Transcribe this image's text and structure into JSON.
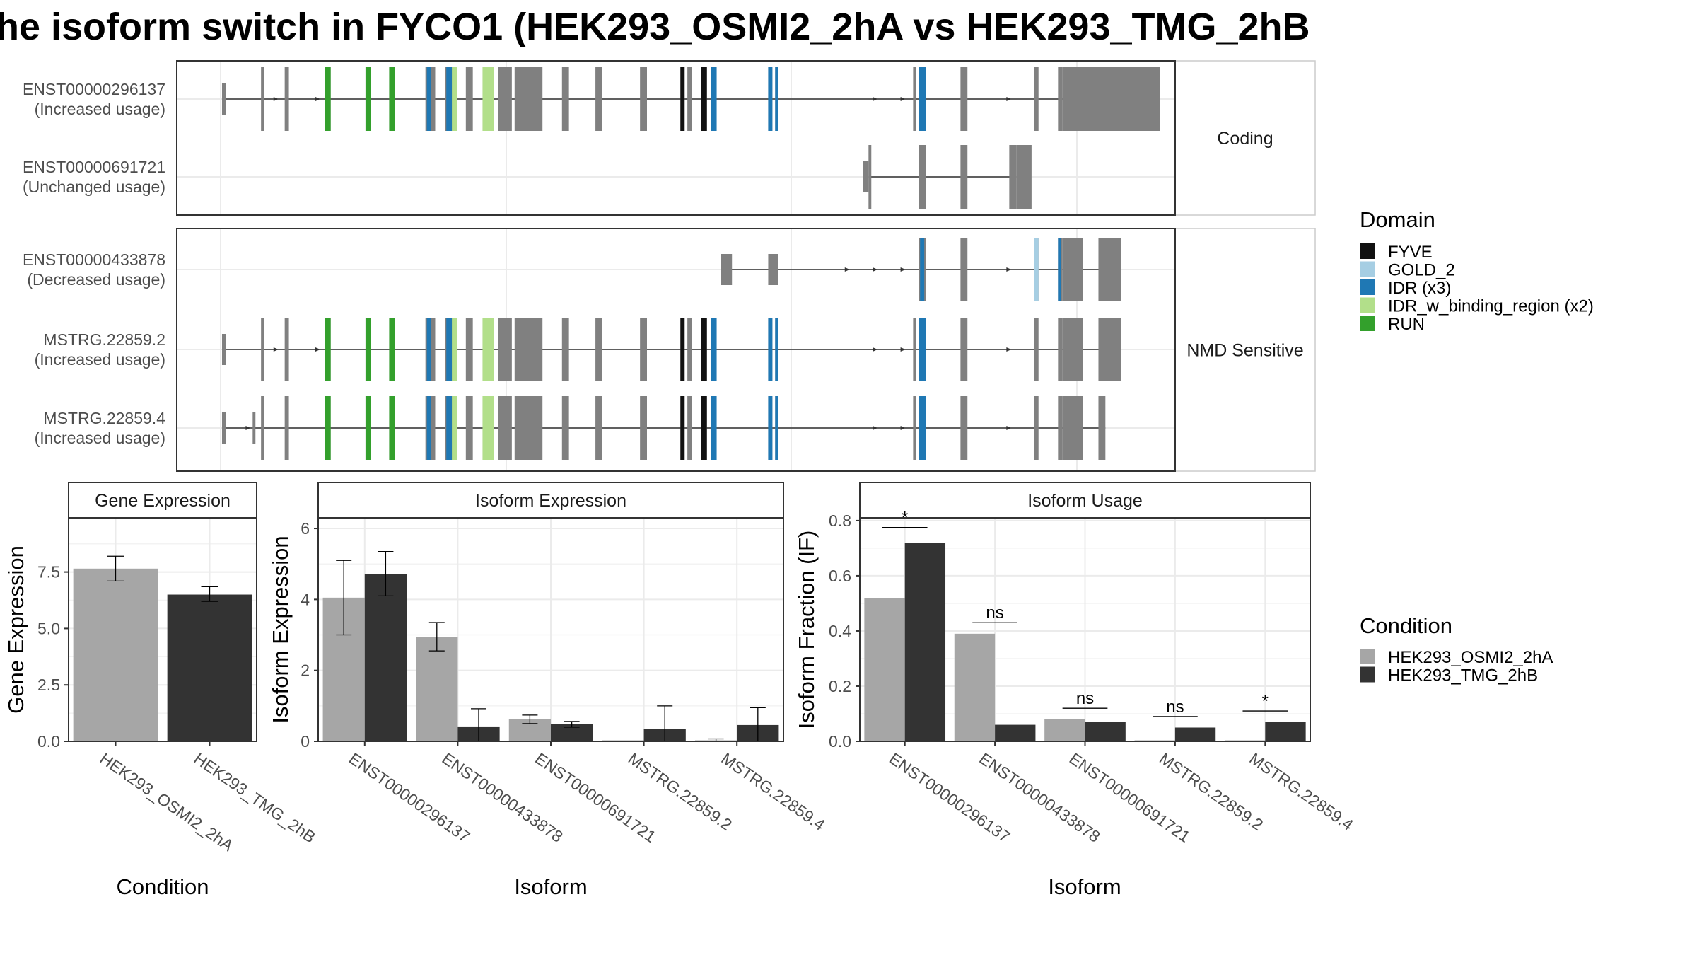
{
  "title": "he isoform switch in FYCO1 (HEK293_OSMI2_2hA vs HEK293_TMG_2hB",
  "colors": {
    "FYVE": "#111111",
    "GOLD_2": "#a6cee3",
    "IDR": "#1f78b4",
    "IDR_w_binding_region": "#b2df8a",
    "RUN": "#33a02c",
    "exon": "#808080",
    "cond_a": "#a6a6a6",
    "cond_b": "#333333"
  },
  "structure": {
    "facets": [
      "Coding",
      "NMD Sensitive"
    ],
    "transcripts": [
      {
        "id": "ENST00000296137",
        "usage": "(Increased usage)",
        "facet": "Coding",
        "utr": [
          [
            1,
            4
          ]
        ],
        "coding": [
          [
            29,
            31
          ],
          [
            46,
            49
          ],
          [
            75,
            79
          ],
          [
            104,
            108
          ],
          [
            121,
            125
          ],
          [
            147,
            154
          ],
          [
            161,
            170
          ],
          [
            176,
            181
          ],
          [
            188,
            196
          ],
          [
            199,
            209
          ],
          [
            211,
            231
          ],
          [
            245,
            250
          ],
          [
            269,
            274
          ],
          [
            301,
            306
          ],
          [
            330,
            333
          ],
          [
            335,
            338
          ],
          [
            345,
            349
          ],
          [
            352,
            356
          ],
          [
            393,
            396
          ],
          [
            398,
            400
          ],
          [
            497,
            499
          ],
          [
            501,
            506
          ],
          [
            531,
            536
          ],
          [
            584,
            587
          ],
          [
            601,
            604
          ],
          [
            604,
            674
          ]
        ],
        "domains": [
          {
            "s": 75,
            "e": 79,
            "d": "RUN"
          },
          {
            "s": 104,
            "e": 108,
            "d": "RUN"
          },
          {
            "s": 121,
            "e": 125,
            "d": "RUN"
          },
          {
            "s": 148,
            "e": 151,
            "d": "IDR"
          },
          {
            "s": 162,
            "e": 166,
            "d": "IDR"
          },
          {
            "s": 166,
            "e": 170,
            "d": "IDR_w_binding_region"
          },
          {
            "s": 188,
            "e": 196,
            "d": "IDR_w_binding_region"
          },
          {
            "s": 330,
            "e": 333,
            "d": "FYVE"
          },
          {
            "s": 345,
            "e": 349,
            "d": "FYVE"
          },
          {
            "s": 352,
            "e": 356,
            "d": "IDR"
          },
          {
            "s": 393,
            "e": 396,
            "d": "IDR"
          },
          {
            "s": 398,
            "e": 400,
            "d": "IDR"
          },
          {
            "s": 501,
            "e": 506,
            "d": "IDR"
          }
        ],
        "intron": [
          1,
          674
        ],
        "arrows": [
          40,
          70,
          470,
          490,
          566
        ]
      },
      {
        "id": "ENST00000691721",
        "usage": "(Unchanged usage)",
        "facet": "Coding",
        "utr": [
          [
            461,
            465
          ]
        ],
        "coding": [
          [
            465,
            467
          ],
          [
            501,
            506
          ],
          [
            531,
            536
          ],
          [
            566,
            571
          ],
          [
            571,
            582
          ]
        ],
        "domains": [],
        "intron": [
          465,
          571
        ],
        "arrows": []
      },
      {
        "id": "ENST00000433878",
        "usage": "(Decreased usage)",
        "facet": "NMD Sensitive",
        "utr": [
          [
            359,
            367
          ],
          [
            393,
            400
          ]
        ],
        "coding": [
          [
            501,
            506
          ],
          [
            531,
            536
          ],
          [
            584,
            587
          ],
          [
            601,
            604
          ],
          [
            604,
            619
          ],
          [
            630,
            646
          ]
        ],
        "domains": [
          {
            "s": 502,
            "e": 505,
            "d": "IDR"
          },
          {
            "s": 584,
            "e": 587,
            "d": "GOLD_2"
          },
          {
            "s": 601,
            "e": 603,
            "d": "IDR"
          }
        ],
        "intron": [
          359,
          646
        ],
        "arrows": [
          450,
          470,
          490,
          566
        ]
      },
      {
        "id": "MSTRG.22859.2",
        "usage": "(Increased usage)",
        "facet": "NMD Sensitive",
        "utr": [
          [
            1,
            4
          ]
        ],
        "coding": [
          [
            29,
            31
          ],
          [
            46,
            49
          ],
          [
            75,
            79
          ],
          [
            104,
            108
          ],
          [
            121,
            125
          ],
          [
            147,
            154
          ],
          [
            161,
            170
          ],
          [
            176,
            181
          ],
          [
            188,
            196
          ],
          [
            199,
            209
          ],
          [
            211,
            231
          ],
          [
            245,
            250
          ],
          [
            269,
            274
          ],
          [
            301,
            306
          ],
          [
            330,
            333
          ],
          [
            335,
            338
          ],
          [
            345,
            349
          ],
          [
            352,
            356
          ],
          [
            393,
            396
          ],
          [
            398,
            400
          ],
          [
            497,
            499
          ],
          [
            501,
            506
          ],
          [
            531,
            536
          ],
          [
            584,
            587
          ],
          [
            601,
            604
          ],
          [
            604,
            619
          ],
          [
            630,
            646
          ]
        ],
        "domains": [
          {
            "s": 75,
            "e": 79,
            "d": "RUN"
          },
          {
            "s": 104,
            "e": 108,
            "d": "RUN"
          },
          {
            "s": 121,
            "e": 125,
            "d": "RUN"
          },
          {
            "s": 148,
            "e": 151,
            "d": "IDR"
          },
          {
            "s": 162,
            "e": 166,
            "d": "IDR"
          },
          {
            "s": 166,
            "e": 170,
            "d": "IDR_w_binding_region"
          },
          {
            "s": 188,
            "e": 196,
            "d": "IDR_w_binding_region"
          },
          {
            "s": 330,
            "e": 333,
            "d": "FYVE"
          },
          {
            "s": 345,
            "e": 349,
            "d": "FYVE"
          },
          {
            "s": 352,
            "e": 356,
            "d": "IDR"
          },
          {
            "s": 393,
            "e": 396,
            "d": "IDR"
          },
          {
            "s": 398,
            "e": 400,
            "d": "IDR"
          },
          {
            "s": 501,
            "e": 506,
            "d": "IDR"
          }
        ],
        "intron": [
          1,
          646
        ],
        "arrows": [
          40,
          70,
          470,
          490,
          566
        ]
      },
      {
        "id": "MSTRG.22859.4",
        "usage": "(Increased usage)",
        "facet": "NMD Sensitive",
        "utr": [
          [
            1,
            4
          ],
          [
            23,
            25
          ]
        ],
        "coding": [
          [
            29,
            31
          ],
          [
            46,
            49
          ],
          [
            75,
            79
          ],
          [
            104,
            108
          ],
          [
            121,
            125
          ],
          [
            147,
            154
          ],
          [
            161,
            170
          ],
          [
            176,
            181
          ],
          [
            188,
            196
          ],
          [
            199,
            209
          ],
          [
            211,
            231
          ],
          [
            245,
            250
          ],
          [
            269,
            274
          ],
          [
            301,
            306
          ],
          [
            330,
            333
          ],
          [
            335,
            338
          ],
          [
            345,
            349
          ],
          [
            352,
            356
          ],
          [
            393,
            396
          ],
          [
            398,
            400
          ],
          [
            497,
            499
          ],
          [
            501,
            506
          ],
          [
            531,
            536
          ],
          [
            584,
            587
          ],
          [
            601,
            604
          ],
          [
            604,
            619
          ],
          [
            630,
            635
          ]
        ],
        "domains": [
          {
            "s": 75,
            "e": 79,
            "d": "RUN"
          },
          {
            "s": 104,
            "e": 108,
            "d": "RUN"
          },
          {
            "s": 121,
            "e": 125,
            "d": "RUN"
          },
          {
            "s": 148,
            "e": 151,
            "d": "IDR"
          },
          {
            "s": 162,
            "e": 166,
            "d": "IDR"
          },
          {
            "s": 166,
            "e": 170,
            "d": "IDR_w_binding_region"
          },
          {
            "s": 188,
            "e": 196,
            "d": "IDR_w_binding_region"
          },
          {
            "s": 330,
            "e": 333,
            "d": "FYVE"
          },
          {
            "s": 345,
            "e": 349,
            "d": "FYVE"
          },
          {
            "s": 352,
            "e": 356,
            "d": "IDR"
          },
          {
            "s": 393,
            "e": 396,
            "d": "IDR"
          },
          {
            "s": 398,
            "e": 400,
            "d": "IDR"
          },
          {
            "s": 501,
            "e": 506,
            "d": "IDR"
          }
        ],
        "intron": [
          1,
          635
        ],
        "arrows": [
          20,
          470,
          490,
          566
        ]
      }
    ]
  },
  "legend_domain": {
    "title": "Domain",
    "items": [
      {
        "label": "FYVE",
        "color": "#111111"
      },
      {
        "label": "GOLD_2",
        "color": "#a6cee3"
      },
      {
        "label": "IDR (x3)",
        "color": "#1f78b4"
      },
      {
        "label": "IDR_w_binding_region (x2)",
        "color": "#b2df8a"
      },
      {
        "label": "RUN",
        "color": "#33a02c"
      }
    ]
  },
  "legend_condition": {
    "title": "Condition",
    "items": [
      {
        "label": "HEK293_OSMI2_2hA",
        "color": "#a6a6a6"
      },
      {
        "label": "HEK293_TMG_2hB",
        "color": "#333333"
      }
    ]
  },
  "chart_data": [
    {
      "type": "bar",
      "title": "Gene Expression",
      "xlabel": "Condition",
      "ylabel": "Gene Expression",
      "ylim": [
        0,
        9.9
      ],
      "yticks": [
        0.0,
        2.5,
        5.0,
        7.5
      ],
      "ytick_labels": [
        "0.0",
        "2.5",
        "5.0",
        "7.5"
      ],
      "categories": [
        "HEK293_OSMI2_2hA",
        "HEK293_TMG_2hB"
      ],
      "values": [
        7.65,
        6.5
      ],
      "errors": [
        [
          7.1,
          8.2
        ],
        [
          6.2,
          6.85
        ]
      ]
    },
    {
      "type": "bar",
      "title": "Isoform Expression",
      "xlabel": "Isoform",
      "ylabel": "Isoform Expression",
      "ylim": [
        0,
        6.3
      ],
      "yticks": [
        0,
        2,
        4,
        6
      ],
      "ytick_labels": [
        "0",
        "2",
        "4",
        "6"
      ],
      "categories": [
        "ENST00000296137",
        "ENST00000433878",
        "ENST00000691721",
        "MSTRG.22859.2",
        "MSTRG.22859.4"
      ],
      "series": [
        {
          "name": "HEK293_OSMI2_2hA",
          "values": [
            4.05,
            2.95,
            0.62,
            0.0,
            0.03
          ],
          "errors": [
            [
              3.0,
              5.1
            ],
            [
              2.55,
              3.35
            ],
            [
              0.5,
              0.74
            ],
            [
              0.0,
              0.0
            ],
            [
              0.0,
              0.07
            ]
          ]
        },
        {
          "name": "HEK293_TMG_2hB",
          "values": [
            4.72,
            0.42,
            0.48,
            0.34,
            0.46
          ],
          "errors": [
            [
              4.1,
              5.35
            ],
            [
              0.0,
              0.92
            ],
            [
              0.4,
              0.56
            ],
            [
              0.0,
              1.0
            ],
            [
              0.0,
              0.95
            ]
          ]
        }
      ]
    },
    {
      "type": "bar",
      "title": "Isoform Usage",
      "xlabel": "Isoform",
      "ylabel": "Isoform Fraction (IF)",
      "ylim": [
        0,
        0.81
      ],
      "yticks": [
        0.0,
        0.2,
        0.4,
        0.6,
        0.8
      ],
      "ytick_labels": [
        "0.0",
        "0.2",
        "0.4",
        "0.6",
        "0.8"
      ],
      "categories": [
        "ENST00000296137",
        "ENST00000433878",
        "ENST00000691721",
        "MSTRG.22859.2",
        "MSTRG.22859.4"
      ],
      "series": [
        {
          "name": "HEK293_OSMI2_2hA",
          "values": [
            0.52,
            0.39,
            0.08,
            0.0,
            0.0
          ]
        },
        {
          "name": "HEK293_TMG_2hB",
          "values": [
            0.72,
            0.06,
            0.07,
            0.05,
            0.07
          ]
        }
      ],
      "significance": [
        "*",
        "ns",
        "ns",
        "ns",
        "*"
      ],
      "sig_y": [
        0.775,
        0.43,
        0.12,
        0.09,
        0.11
      ]
    }
  ]
}
